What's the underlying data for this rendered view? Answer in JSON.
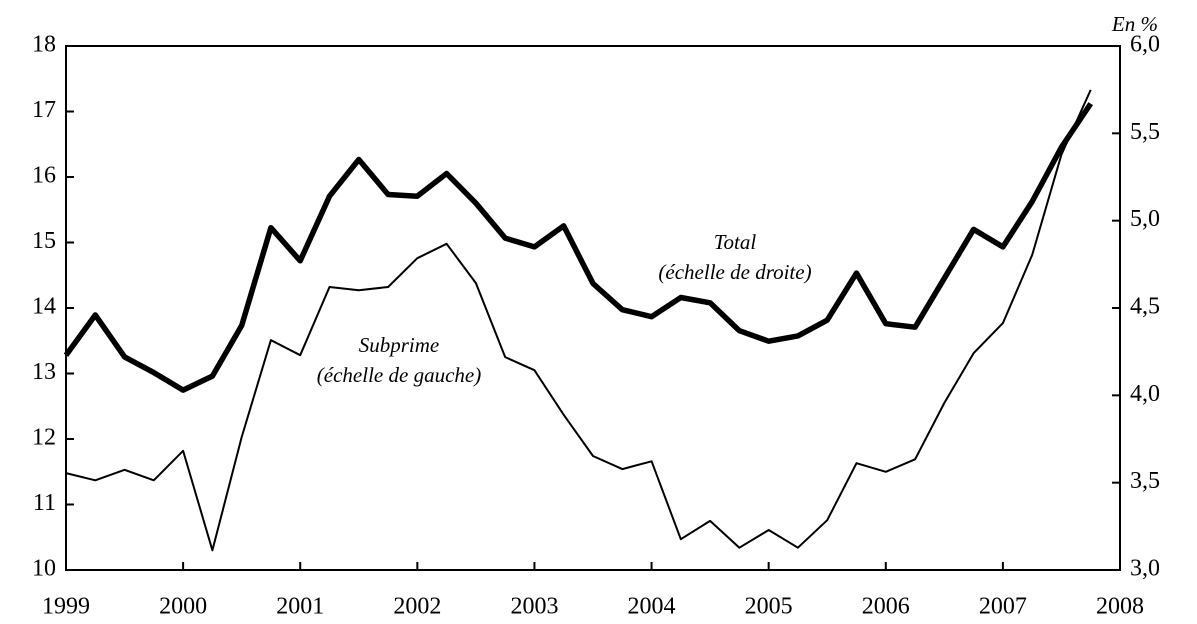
{
  "chart_data": {
    "type": "line",
    "unit_label": "En %",
    "x": [
      1999,
      1999.25,
      1999.5,
      1999.75,
      2000,
      2000.25,
      2000.5,
      2000.75,
      2001,
      2001.25,
      2001.5,
      2001.75,
      2002,
      2002.25,
      2002.5,
      2002.75,
      2003,
      2003.25,
      2003.5,
      2003.75,
      2004,
      2004.25,
      2004.5,
      2004.75,
      2005,
      2005.25,
      2005.5,
      2005.75,
      2006,
      2006.25,
      2006.5,
      2006.75,
      2007,
      2007.25,
      2007.5,
      2007.75
    ],
    "series": [
      {
        "name": "Subprime",
        "color": "#000000",
        "axis": "y",
        "values": [
          11.48,
          11.37,
          11.53,
          11.37,
          11.82,
          10.3,
          12.03,
          13.51,
          13.28,
          14.32,
          14.27,
          14.32,
          14.76,
          14.98,
          14.38,
          13.25,
          13.05,
          12.37,
          11.74,
          11.54,
          11.66,
          10.47,
          10.75,
          10.34,
          10.61,
          10.34,
          10.76,
          11.63,
          11.5,
          11.69,
          12.55,
          13.31,
          13.77,
          14.81,
          16.34,
          17.33
        ]
      },
      {
        "name": "Total",
        "color": "#000000",
        "axis": "y2",
        "values": [
          4.23,
          4.46,
          4.22,
          4.13,
          4.03,
          4.11,
          4.4,
          4.96,
          4.77,
          5.14,
          5.35,
          5.15,
          5.14,
          5.27,
          5.1,
          4.9,
          4.85,
          4.97,
          4.64,
          4.49,
          4.45,
          4.56,
          4.53,
          4.37,
          4.31,
          4.34,
          4.43,
          4.7,
          4.41,
          4.39,
          4.67,
          4.95,
          4.85,
          5.11,
          5.42,
          5.67
        ]
      }
    ],
    "annotations": [
      "Total",
      "(échelle de droite)",
      "Subprime",
      "(échelle de gauche)"
    ],
    "xlim": [
      1999,
      2008
    ],
    "xticks": [
      1999,
      2000,
      2001,
      2002,
      2003,
      2004,
      2005,
      2006,
      2007,
      2008
    ],
    "ylim": [
      10,
      18
    ],
    "yticks": [
      10,
      11,
      12,
      13,
      14,
      15,
      16,
      17,
      18
    ],
    "y2lim": [
      3,
      6
    ],
    "y2ticks": [
      {
        "value": 3,
        "label": "3,0"
      },
      {
        "value": 3.5,
        "label": "3,5"
      },
      {
        "value": 4,
        "label": "4,0"
      },
      {
        "value": 4.5,
        "label": "4,5"
      },
      {
        "value": 5,
        "label": "5,0"
      },
      {
        "value": 5.5,
        "label": "5,5"
      },
      {
        "value": 6,
        "label": "6,0"
      }
    ]
  }
}
